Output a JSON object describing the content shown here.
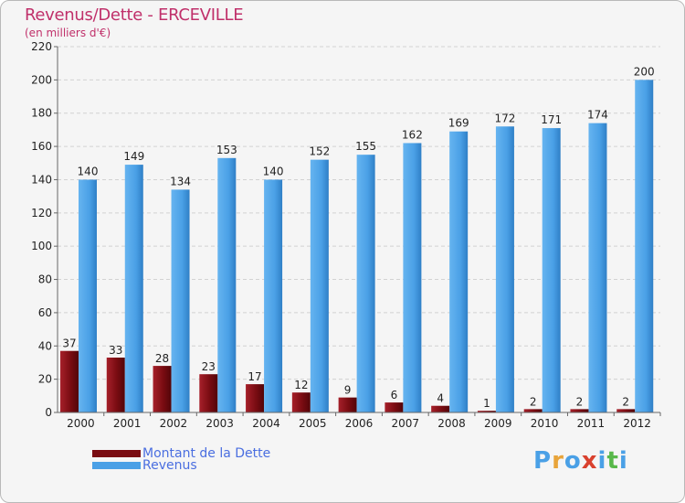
{
  "header": {
    "title": "Revenus/Dette - ERCEVILLE",
    "subtitle": "(en milliers d'€)"
  },
  "legend": [
    {
      "label": "Montant de la Dette",
      "color": "#7a0c12"
    },
    {
      "label": "Revenus",
      "color": "#4aa0e6"
    }
  ],
  "logo": {
    "letters": [
      "P",
      "r",
      "o",
      "x",
      "i",
      "t",
      "i"
    ],
    "colors": [
      "#4aa0e6",
      "#e8a43a",
      "#4aa0e6",
      "#d9412e",
      "#4aa0e6",
      "#58b84a",
      "#4aa0e6"
    ]
  },
  "chart_data": {
    "type": "bar",
    "categories": [
      "2000",
      "2001",
      "2002",
      "2003",
      "2004",
      "2005",
      "2006",
      "2007",
      "2008",
      "2009",
      "2010",
      "2011",
      "2012"
    ],
    "series": [
      {
        "name": "Montant de la Dette",
        "color": "#7a0c12",
        "values": [
          37,
          33,
          28,
          23,
          17,
          12,
          9,
          6,
          4,
          1,
          2,
          2,
          2
        ]
      },
      {
        "name": "Revenus",
        "color": "#4aa0e6",
        "values": [
          140,
          149,
          134,
          153,
          140,
          152,
          155,
          162,
          169,
          172,
          171,
          174,
          200
        ]
      }
    ],
    "ylim": [
      0,
      220
    ],
    "yticks": [
      0,
      20,
      40,
      60,
      80,
      100,
      120,
      140,
      160,
      180,
      200,
      220
    ],
    "grid": true,
    "legend_position": "bottom-left"
  }
}
